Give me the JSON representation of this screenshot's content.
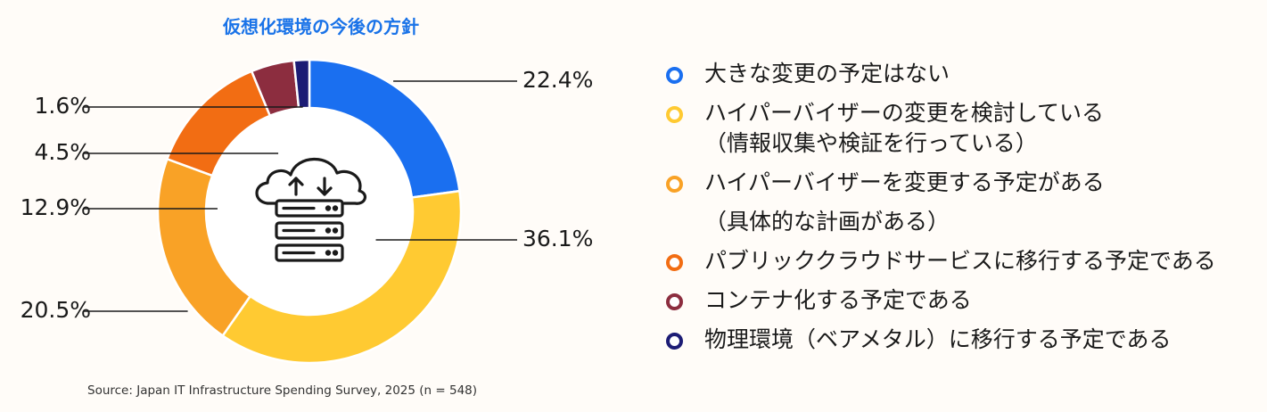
{
  "title": "仮想化環境の今後の方針",
  "source": "Source: Japan IT Infrastructure Spending Survey, 2025 (n = 548)",
  "chart_data": {
    "type": "donut",
    "title": "仮想化環境の今後の方針",
    "series": [
      {
        "name": "大きな変更の予定はない",
        "value": 22.4,
        "label": "22.4%",
        "color": "#1a6ff0"
      },
      {
        "name": "ハイパーバイザーの変更を検討している（情報収集や検証を行っている）",
        "value": 36.1,
        "label": "36.1%",
        "color": "#ffca32"
      },
      {
        "name": "ハイパーバイザーを変更する予定がある（具体的な計画がある）",
        "value": 20.5,
        "label": "20.5%",
        "color": "#f9a226"
      },
      {
        "name": "パブリッククラウドサービスに移行する予定である",
        "value": 12.9,
        "label": "12.9%",
        "color": "#f26d13"
      },
      {
        "name": "コンテナ化する予定である",
        "value": 4.5,
        "label": "4.5%",
        "color": "#8c2d3f"
      },
      {
        "name": "物理環境（ベアメタル）に移行する予定である",
        "value": 1.6,
        "label": "1.6%",
        "color": "#1c1c75"
      }
    ]
  },
  "legend": [
    {
      "lines": [
        "大きな変更の予定はない"
      ],
      "color": "#1a6ff0"
    },
    {
      "lines": [
        "ハイパーバイザーの変更を検討している",
        "（情報収集や検証を行っている）"
      ],
      "color": "#ffca32"
    },
    {
      "lines": [
        "ハイパーバイザーを変更する予定がある",
        "（具体的な計画がある）"
      ],
      "color": "#f9a226"
    },
    {
      "lines": [
        "パブリッククラウドサービスに移行する予定である"
      ],
      "color": "#f26d13"
    },
    {
      "lines": [
        "コンテナ化する予定である"
      ],
      "color": "#8c2d3f"
    },
    {
      "lines": [
        "物理環境（ベアメタル）に移行する予定である"
      ],
      "color": "#1c1c75"
    }
  ],
  "center_icon": "cloud-server-icon"
}
